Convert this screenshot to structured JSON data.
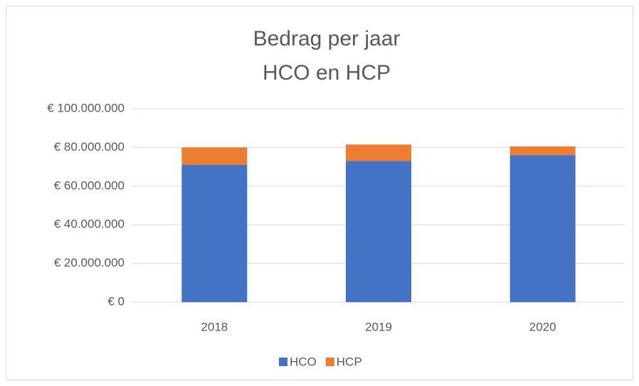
{
  "chart_data": {
    "type": "stacked_bar",
    "title": "Bedrag per jaar",
    "subtitle": "HCO en HCP",
    "categories": [
      "2018",
      "2019",
      "2020"
    ],
    "series": [
      {
        "name": "HCO",
        "color": "#4472c4",
        "values": [
          71000000,
          73000000,
          76000000
        ]
      },
      {
        "name": "HCP",
        "color": "#ed7d31",
        "values": [
          9000000,
          8500000,
          4500000
        ]
      }
    ],
    "ylim": [
      0,
      100000000
    ],
    "yticks": [
      {
        "value": 0,
        "label": "€ 0"
      },
      {
        "value": 20000000,
        "label": "€ 20.000.000"
      },
      {
        "value": 40000000,
        "label": "€ 40.000.000"
      },
      {
        "value": 60000000,
        "label": "€ 60.000.000"
      },
      {
        "value": 80000000,
        "label": "€ 80.000.000"
      },
      {
        "value": 100000000,
        "label": "€ 100.000.000"
      }
    ],
    "grid": true,
    "legend": "bottom"
  }
}
